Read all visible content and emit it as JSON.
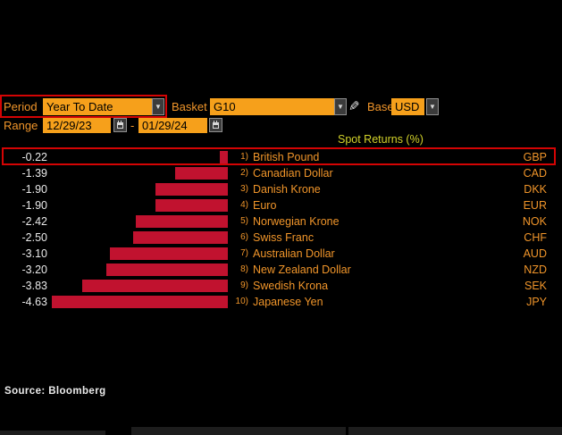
{
  "controls": {
    "period_label": "Period",
    "period_value": "Year To Date",
    "basket_label": "Basket",
    "basket_value": "G10",
    "base_label": "Base",
    "base_value": "USD",
    "range_label": "Range",
    "range_start": "12/29/23",
    "range_separator": "-",
    "range_end": "01/29/24"
  },
  "chart_data": {
    "type": "bar",
    "orientation": "horizontal",
    "title": "Spot Returns (%)",
    "xlim": [
      -4.8,
      0
    ],
    "bar_color": "#c1122f",
    "rows": [
      {
        "rank": "1)",
        "name": "British Pound",
        "code": "GBP",
        "value": -0.22,
        "value_label": "-0.22",
        "highlighted": true
      },
      {
        "rank": "2)",
        "name": "Canadian Dollar",
        "code": "CAD",
        "value": -1.39,
        "value_label": "-1.39",
        "highlighted": false
      },
      {
        "rank": "3)",
        "name": "Danish Krone",
        "code": "DKK",
        "value": -1.9,
        "value_label": "-1.90",
        "highlighted": false
      },
      {
        "rank": "4)",
        "name": "Euro",
        "code": "EUR",
        "value": -1.9,
        "value_label": "-1.90",
        "highlighted": false
      },
      {
        "rank": "5)",
        "name": "Norwegian Krone",
        "code": "NOK",
        "value": -2.42,
        "value_label": "-2.42",
        "highlighted": false
      },
      {
        "rank": "6)",
        "name": "Swiss Franc",
        "code": "CHF",
        "value": -2.5,
        "value_label": "-2.50",
        "highlighted": false
      },
      {
        "rank": "7)",
        "name": "Australian Dollar",
        "code": "AUD",
        "value": -3.1,
        "value_label": "-3.10",
        "highlighted": false
      },
      {
        "rank": "8)",
        "name": "New Zealand Dollar",
        "code": "NZD",
        "value": -3.2,
        "value_label": "-3.20",
        "highlighted": false
      },
      {
        "rank": "9)",
        "name": "Swedish Krona",
        "code": "SEK",
        "value": -3.83,
        "value_label": "-3.83",
        "highlighted": false
      },
      {
        "rank": "10)",
        "name": "Japanese Yen",
        "code": "JPY",
        "value": -4.63,
        "value_label": "-4.63",
        "highlighted": false
      }
    ]
  },
  "source": "Source: Bloomberg",
  "colors": {
    "background": "#000000",
    "field_orange": "#f6a01b",
    "label_orange": "#f0952a",
    "bar_red": "#c1122f",
    "annotation_red": "#d40404",
    "title_yellow": "#d3d32a",
    "value_white": "#e9e9e9"
  }
}
